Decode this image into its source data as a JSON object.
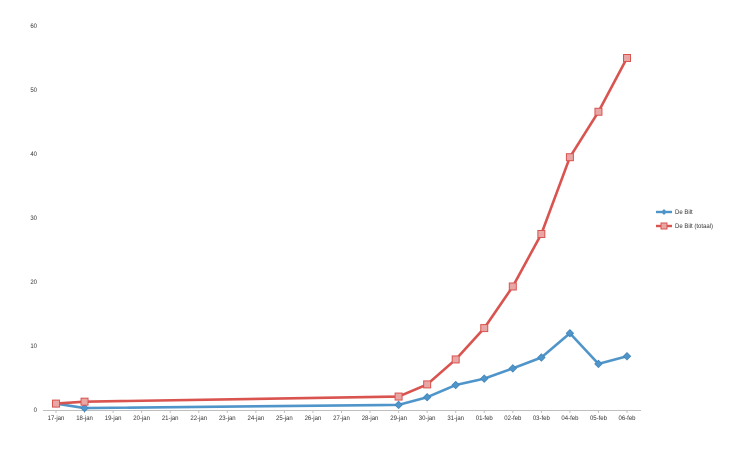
{
  "chart_data": {
    "type": "line",
    "title": "",
    "xlabel": "",
    "ylabel": "",
    "ylim": [
      0,
      60
    ],
    "yticks": [
      0,
      10,
      20,
      30,
      40,
      50,
      60
    ],
    "grid": false,
    "legend_position": "right",
    "categories": [
      "17-jan",
      "18-jan",
      "19-jan",
      "20-jan",
      "21-jan",
      "22-jan",
      "23-jan",
      "24-jan",
      "25-jan",
      "26-jan",
      "27-jan",
      "28-jan",
      "29-jan",
      "30-jan",
      "31-jan",
      "01-feb",
      "02-feb",
      "03-feb",
      "04-feb",
      "05-feb",
      "06-feb"
    ],
    "series": [
      {
        "name": "De Bilt",
        "color": "#4f95c9",
        "marker": "diamond",
        "points": [
          {
            "x": "17-jan",
            "y": 1.0
          },
          {
            "x": "18-jan",
            "y": 0.3
          },
          {
            "x": "29-jan",
            "y": 0.8
          },
          {
            "x": "30-jan",
            "y": 2.0
          },
          {
            "x": "31-jan",
            "y": 3.9
          },
          {
            "x": "01-feb",
            "y": 4.9
          },
          {
            "x": "02-feb",
            "y": 6.5
          },
          {
            "x": "03-feb",
            "y": 8.2
          },
          {
            "x": "04-feb",
            "y": 12.0
          },
          {
            "x": "05-feb",
            "y": 7.2
          },
          {
            "x": "06-feb",
            "y": 8.4
          }
        ]
      },
      {
        "name": "De Bilt (totaal)",
        "color": "#d9534f",
        "marker": "square",
        "points": [
          {
            "x": "17-jan",
            "y": 1.0
          },
          {
            "x": "18-jan",
            "y": 1.3
          },
          {
            "x": "29-jan",
            "y": 2.1
          },
          {
            "x": "30-jan",
            "y": 4.0
          },
          {
            "x": "31-jan",
            "y": 7.9
          },
          {
            "x": "01-feb",
            "y": 12.8
          },
          {
            "x": "02-feb",
            "y": 19.3
          },
          {
            "x": "03-feb",
            "y": 27.5
          },
          {
            "x": "04-feb",
            "y": 39.5
          },
          {
            "x": "05-feb",
            "y": 46.6
          },
          {
            "x": "06-feb",
            "y": 55.0
          }
        ]
      }
    ]
  }
}
